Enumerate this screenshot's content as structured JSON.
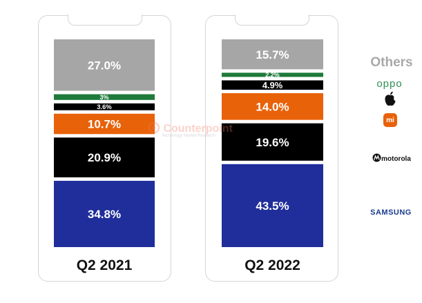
{
  "chart_data": {
    "type": "bar",
    "stacked": true,
    "ylim": [
      0,
      100
    ],
    "categories": [
      "Q2 2021",
      "Q2 2022"
    ],
    "series": [
      {
        "name": "SAMSUNG",
        "color": "#1f2e9a",
        "values": [
          34.8,
          43.5
        ],
        "labels": [
          "34.8%",
          "43.5%"
        ]
      },
      {
        "name": "motorola",
        "color": "#000000",
        "values": [
          20.9,
          19.6
        ],
        "labels": [
          "20.9%",
          "19.6%"
        ]
      },
      {
        "name": "Xiaomi",
        "color": "#e8620a",
        "values": [
          10.7,
          14.0
        ],
        "labels": [
          "10.7%",
          "14.0%"
        ]
      },
      {
        "name": "Apple",
        "color": "#000000",
        "values": [
          3.6,
          4.9
        ],
        "labels": [
          "3.6%",
          "4.9%"
        ]
      },
      {
        "name": "oppo",
        "color": "#1e7a3a",
        "values": [
          3.0,
          2.2
        ],
        "labels": [
          "3%",
          "2.2%"
        ]
      },
      {
        "name": "Others",
        "color": "#a6a6a6",
        "values": [
          27.0,
          15.7
        ],
        "labels": [
          "27.0%",
          "15.7%"
        ]
      }
    ],
    "legend": {
      "position": "right",
      "others": "Others",
      "oppo": "oppo",
      "xiaomi": "mi",
      "motorola": "motorola",
      "samsung": "SAMSUNG"
    }
  },
  "watermark": {
    "name": "Counterpoint",
    "tagline": "Technology Market Research"
  }
}
